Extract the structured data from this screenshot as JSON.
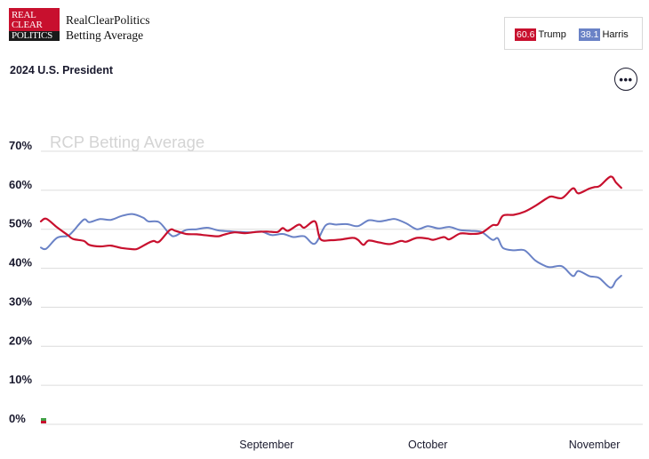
{
  "header": {
    "logo_lines": [
      "REAL",
      "CLEAR",
      "POLITICS"
    ],
    "brand_line1": "RealClearPolitics",
    "brand_line2": "Betting Average",
    "title": "2024 U.S. President",
    "more_icon": "more-horizontal-icon",
    "more_symbol": "•••"
  },
  "legend": [
    {
      "value": "60.6",
      "name": "Trump",
      "color": "#c8102e"
    },
    {
      "value": "38.1",
      "name": "Harris",
      "color": "#6a82c6"
    }
  ],
  "chart_data": {
    "type": "line",
    "title": "RCP Betting Average",
    "ylim": [
      0,
      70
    ],
    "yticks": [
      "70%",
      "60%",
      "50%",
      "40%",
      "30%",
      "20%",
      "10%",
      "0%"
    ],
    "ytick_values": [
      70,
      60,
      50,
      40,
      30,
      20,
      10,
      0
    ],
    "xlim": [
      "2024-07-21",
      "2024-11-10"
    ],
    "xticks": [
      {
        "date": "2024-09-01",
        "label": "September"
      },
      {
        "date": "2024-10-01",
        "label": "October"
      },
      {
        "date": "2024-11-01",
        "label": "November"
      }
    ],
    "grid": true,
    "series": [
      {
        "name": "Trump",
        "color": "#c8102e",
        "points": [
          [
            "2024-07-21",
            52.0
          ],
          [
            "2024-07-22",
            52.7
          ],
          [
            "2024-07-24",
            50.5
          ],
          [
            "2024-07-26",
            48.5
          ],
          [
            "2024-07-27",
            47.5
          ],
          [
            "2024-07-29",
            47.0
          ],
          [
            "2024-07-30",
            46.0
          ],
          [
            "2024-08-01",
            45.6
          ],
          [
            "2024-08-03",
            45.8
          ],
          [
            "2024-08-05",
            45.2
          ],
          [
            "2024-08-07",
            44.9
          ],
          [
            "2024-08-08",
            45.0
          ],
          [
            "2024-08-10",
            46.5
          ],
          [
            "2024-08-11",
            47.0
          ],
          [
            "2024-08-12",
            46.8
          ],
          [
            "2024-08-14",
            49.8
          ],
          [
            "2024-08-15",
            49.6
          ],
          [
            "2024-08-17",
            48.8
          ],
          [
            "2024-08-19",
            48.7
          ],
          [
            "2024-08-21",
            48.4
          ],
          [
            "2024-08-23",
            48.2
          ],
          [
            "2024-08-24",
            48.6
          ],
          [
            "2024-08-26",
            49.2
          ],
          [
            "2024-08-28",
            49.0
          ],
          [
            "2024-08-30",
            49.3
          ],
          [
            "2024-09-01",
            49.4
          ],
          [
            "2024-09-03",
            49.3
          ],
          [
            "2024-09-04",
            50.3
          ],
          [
            "2024-09-05",
            49.6
          ],
          [
            "2024-09-07",
            51.2
          ],
          [
            "2024-09-08",
            50.4
          ],
          [
            "2024-09-10",
            52.0
          ],
          [
            "2024-09-11",
            47.5
          ],
          [
            "2024-09-13",
            47.2
          ],
          [
            "2024-09-15",
            47.4
          ],
          [
            "2024-09-17",
            47.8
          ],
          [
            "2024-09-18",
            47.3
          ],
          [
            "2024-09-19",
            46.0
          ],
          [
            "2024-09-20",
            47.1
          ],
          [
            "2024-09-22",
            46.6
          ],
          [
            "2024-09-24",
            46.2
          ],
          [
            "2024-09-26",
            47.0
          ],
          [
            "2024-09-27",
            46.8
          ],
          [
            "2024-09-29",
            47.8
          ],
          [
            "2024-10-01",
            47.6
          ],
          [
            "2024-10-02",
            47.3
          ],
          [
            "2024-10-04",
            48.0
          ],
          [
            "2024-10-05",
            47.4
          ],
          [
            "2024-10-07",
            48.9
          ],
          [
            "2024-10-09",
            48.8
          ],
          [
            "2024-10-11",
            49.1
          ],
          [
            "2024-10-13",
            51.0
          ],
          [
            "2024-10-14",
            51.2
          ],
          [
            "2024-10-15",
            53.5
          ],
          [
            "2024-10-17",
            53.7
          ],
          [
            "2024-10-19",
            54.5
          ],
          [
            "2024-10-21",
            56.0
          ],
          [
            "2024-10-23",
            57.8
          ],
          [
            "2024-10-24",
            58.4
          ],
          [
            "2024-10-26",
            58.0
          ],
          [
            "2024-10-28",
            60.5
          ],
          [
            "2024-10-29",
            59.2
          ],
          [
            "2024-10-31",
            60.4
          ],
          [
            "2024-11-01",
            60.8
          ],
          [
            "2024-11-02",
            61.1
          ],
          [
            "2024-11-04",
            63.5
          ],
          [
            "2024-11-05",
            62.0
          ],
          [
            "2024-11-06",
            60.6
          ]
        ]
      },
      {
        "name": "Harris",
        "color": "#6a82c6",
        "points": [
          [
            "2024-07-21",
            45.3
          ],
          [
            "2024-07-22",
            45.0
          ],
          [
            "2024-07-24",
            47.8
          ],
          [
            "2024-07-26",
            48.3
          ],
          [
            "2024-07-27",
            49.5
          ],
          [
            "2024-07-29",
            52.5
          ],
          [
            "2024-07-30",
            51.8
          ],
          [
            "2024-08-01",
            52.6
          ],
          [
            "2024-08-03",
            52.4
          ],
          [
            "2024-08-05",
            53.4
          ],
          [
            "2024-08-07",
            53.9
          ],
          [
            "2024-08-09",
            53.0
          ],
          [
            "2024-08-10",
            52.0
          ],
          [
            "2024-08-12",
            51.8
          ],
          [
            "2024-08-14",
            48.7
          ],
          [
            "2024-08-15",
            48.3
          ],
          [
            "2024-08-17",
            49.8
          ],
          [
            "2024-08-19",
            50.0
          ],
          [
            "2024-08-21",
            50.4
          ],
          [
            "2024-08-23",
            49.7
          ],
          [
            "2024-08-25",
            49.5
          ],
          [
            "2024-08-27",
            49.3
          ],
          [
            "2024-08-29",
            49.2
          ],
          [
            "2024-08-31",
            49.4
          ],
          [
            "2024-09-02",
            48.5
          ],
          [
            "2024-09-04",
            48.8
          ],
          [
            "2024-09-06",
            48.0
          ],
          [
            "2024-09-08",
            48.2
          ],
          [
            "2024-09-10",
            46.3
          ],
          [
            "2024-09-12",
            51.0
          ],
          [
            "2024-09-14",
            51.2
          ],
          [
            "2024-09-16",
            51.3
          ],
          [
            "2024-09-18",
            50.8
          ],
          [
            "2024-09-20",
            52.3
          ],
          [
            "2024-09-22",
            52.0
          ],
          [
            "2024-09-24",
            52.5
          ],
          [
            "2024-09-25",
            52.6
          ],
          [
            "2024-09-27",
            51.5
          ],
          [
            "2024-09-29",
            50.0
          ],
          [
            "2024-10-01",
            50.8
          ],
          [
            "2024-10-03",
            50.2
          ],
          [
            "2024-10-05",
            50.6
          ],
          [
            "2024-10-07",
            49.8
          ],
          [
            "2024-10-09",
            49.6
          ],
          [
            "2024-10-11",
            49.3
          ],
          [
            "2024-10-13",
            47.3
          ],
          [
            "2024-10-14",
            47.7
          ],
          [
            "2024-10-15",
            45.2
          ],
          [
            "2024-10-17",
            44.6
          ],
          [
            "2024-10-19",
            44.6
          ],
          [
            "2024-10-21",
            42.0
          ],
          [
            "2024-10-23",
            40.5
          ],
          [
            "2024-10-24",
            40.3
          ],
          [
            "2024-10-26",
            40.5
          ],
          [
            "2024-10-28",
            38.0
          ],
          [
            "2024-10-29",
            39.3
          ],
          [
            "2024-10-31",
            38.0
          ],
          [
            "2024-11-01",
            37.8
          ],
          [
            "2024-11-02",
            37.4
          ],
          [
            "2024-11-04",
            35.0
          ],
          [
            "2024-11-05",
            36.8
          ],
          [
            "2024-11-06",
            38.1
          ]
        ]
      }
    ]
  }
}
